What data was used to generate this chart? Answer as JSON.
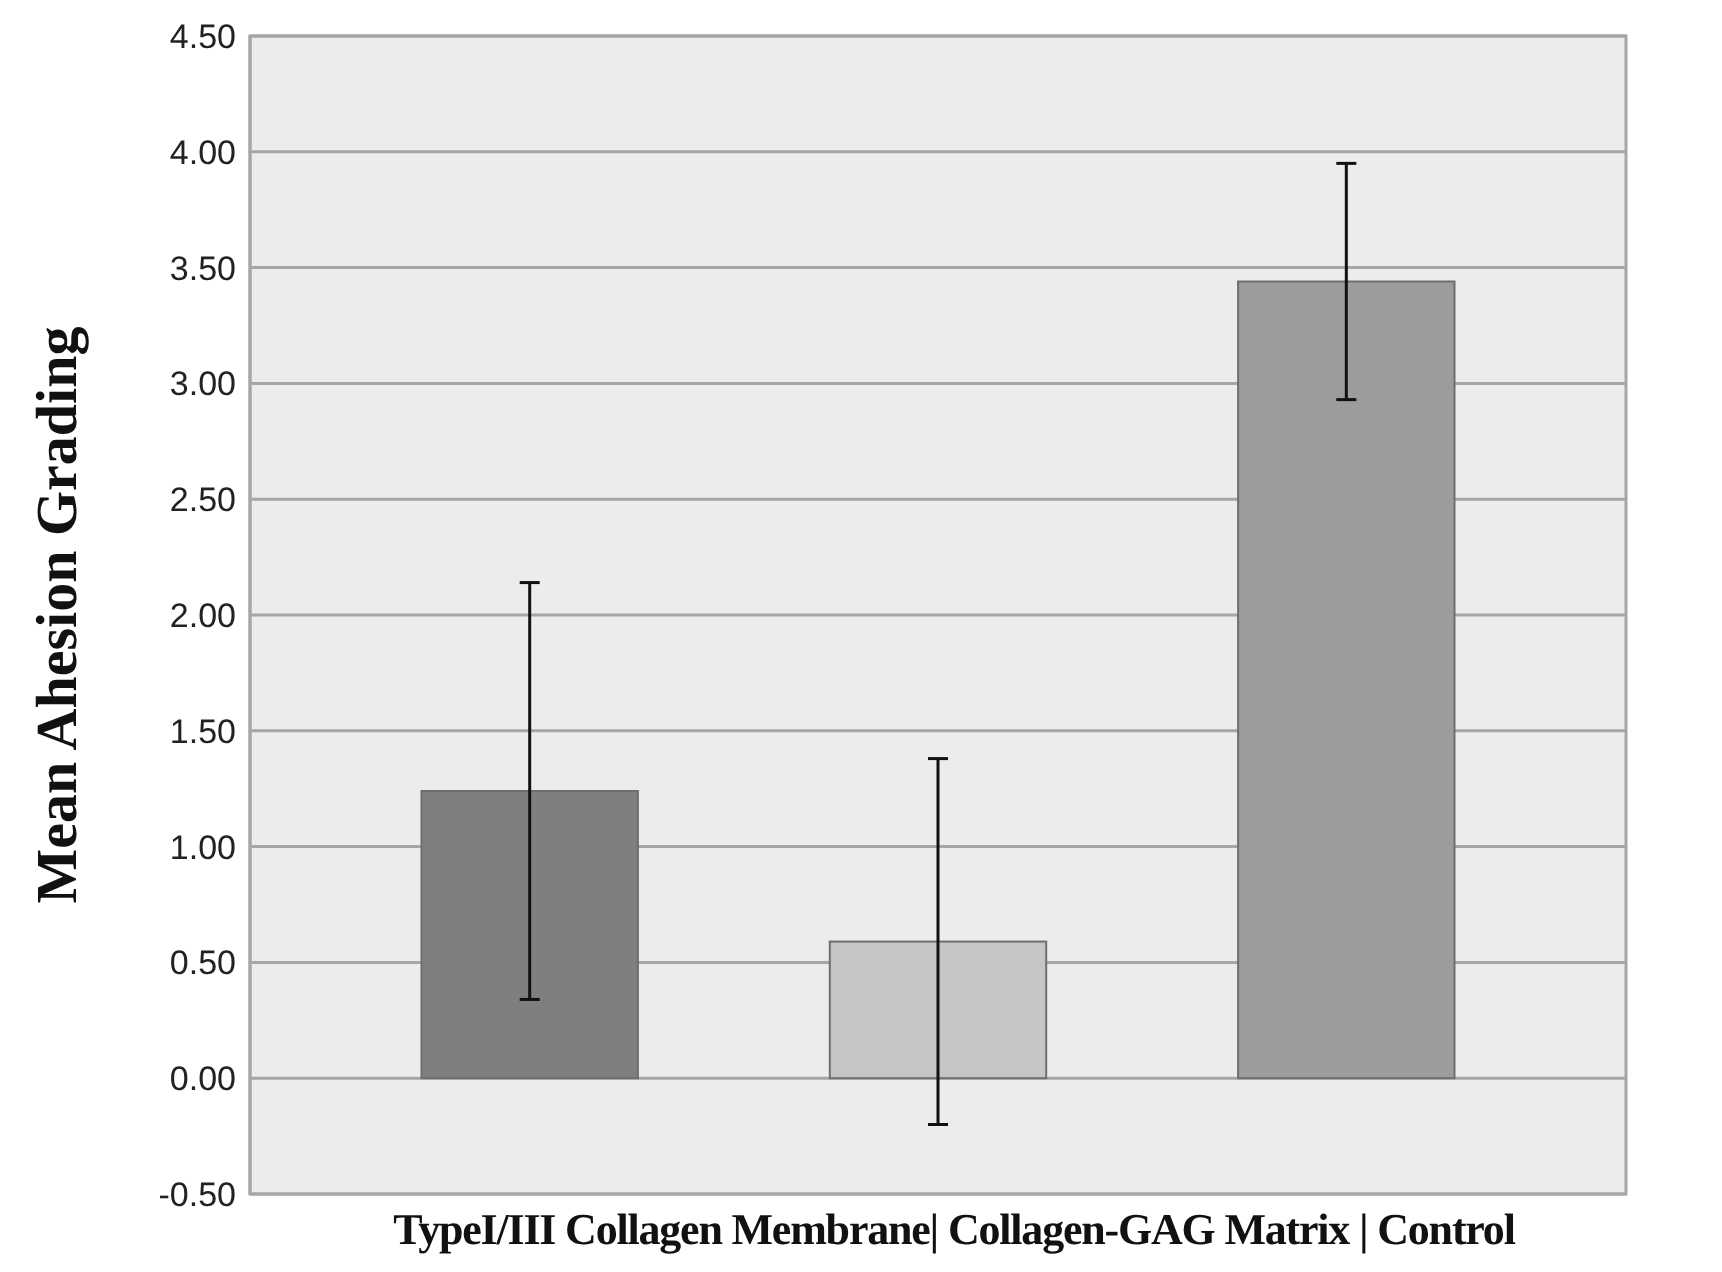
{
  "chart_data": {
    "type": "bar",
    "ylabel": "Mean Ahesion Grading",
    "xlabel": "TypeI/III Collagen Membrane| Collagen-GAG Matrix | Control",
    "categories": [
      null,
      null,
      null
    ],
    "values": [
      1.24,
      0.59,
      3.44
    ],
    "errors": [
      0.9,
      0.79,
      0.51
    ],
    "colors": [
      "#7f7f7f",
      "#c4c5c4",
      "#9b9c9b"
    ],
    "ylim": [
      -0.5,
      4.5
    ],
    "yticks": [
      {
        "value": -0.5,
        "label": "-0.50"
      },
      {
        "value": 0,
        "label": "0.00"
      },
      {
        "value": 0.5,
        "label": "0.50"
      },
      {
        "value": 1,
        "label": "1.00"
      },
      {
        "value": 1.5,
        "label": "1.50"
      },
      {
        "value": 2,
        "label": "2.00"
      },
      {
        "value": 2.5,
        "label": "2.50"
      },
      {
        "value": 3,
        "label": "3.00"
      },
      {
        "value": 3.5,
        "label": "3.50"
      },
      {
        "value": 4,
        "label": "4.00"
      },
      {
        "value": 4.5,
        "label": "4.50"
      }
    ],
    "grid": "y"
  }
}
